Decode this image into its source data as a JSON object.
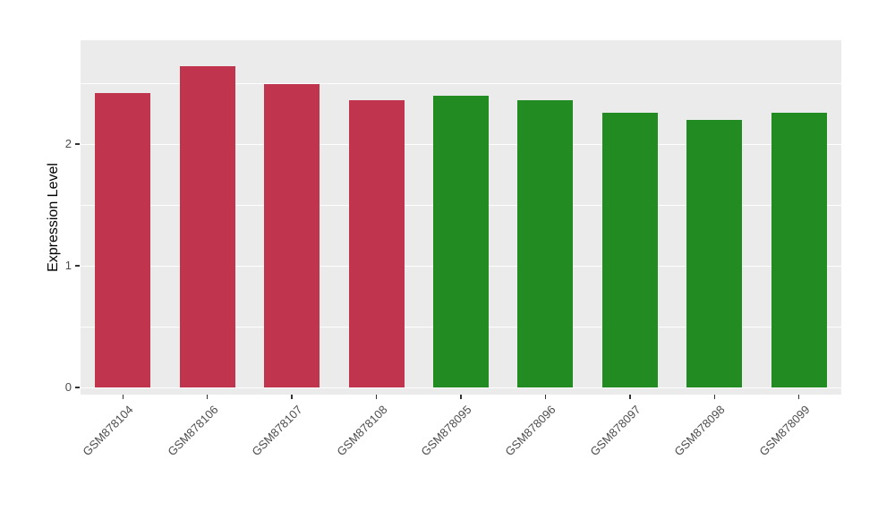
{
  "chart_data": {
    "type": "bar",
    "title": "",
    "xlabel": "",
    "ylabel": "Expression Level",
    "categories": [
      "GSM878104",
      "GSM878106",
      "GSM878107",
      "GSM878108",
      "GSM878095",
      "GSM878096",
      "GSM878097",
      "GSM878098",
      "GSM878099"
    ],
    "values": [
      2.42,
      2.64,
      2.49,
      2.36,
      2.4,
      2.36,
      2.26,
      2.2,
      2.26
    ],
    "colors": [
      "#C0354D",
      "#C0354D",
      "#C0354D",
      "#C0354D",
      "#228B22",
      "#228B22",
      "#228B22",
      "#228B22",
      "#228B22"
    ],
    "y_ticks": [
      0,
      1,
      2
    ],
    "y_minor_ticks": [
      0.5,
      1.5,
      2.5
    ],
    "ylim": [
      0,
      2.85
    ],
    "grid": "on",
    "legend": "none",
    "panel_background": "#EBEBEB",
    "grid_color": "#FFFFFF",
    "tick_label_color": "#4D4D4D"
  }
}
